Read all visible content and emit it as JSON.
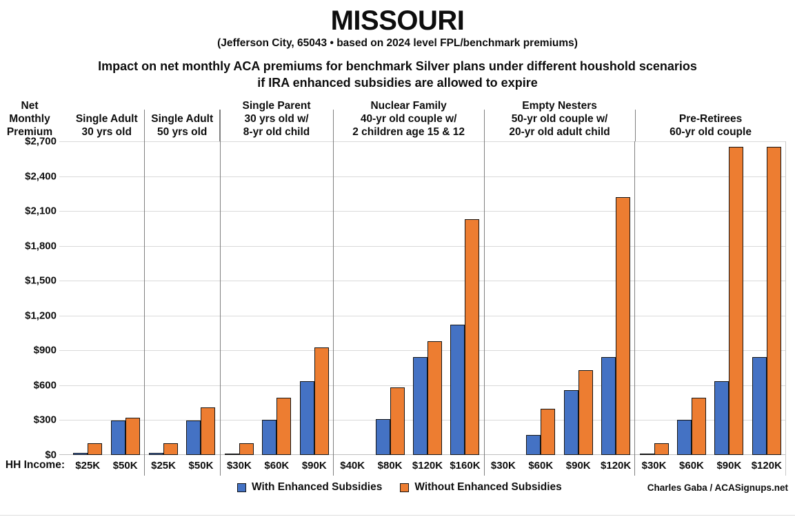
{
  "header": {
    "title": "MISSOURI",
    "subtitle": "(Jefferson City, 65043 • based on 2024 level FPL/benchmark premiums)",
    "heading_line1": "Impact on net monthly ACA premiums for benchmark Silver plans under different houshold scenarios",
    "heading_line2": "if IRA enhanced subsidies are allowed to expire"
  },
  "axis": {
    "y_title_lines": [
      "Net",
      "Monthly",
      "Premium"
    ],
    "x_title": "HH Income:",
    "y_tick_labels": [
      "$2,700",
      "$2,400",
      "$2,100",
      "$1,800",
      "$1,500",
      "$1,200",
      "$900",
      "$600",
      "$300",
      "$0"
    ]
  },
  "legend": {
    "items": [
      {
        "label": "With Enhanced Subsidies",
        "color": "#4472C4"
      },
      {
        "label": "Without Enhanced Subsidies",
        "color": "#ED7D31"
      }
    ]
  },
  "credit": "Charles Gaba / ACASignups.net",
  "chart_data": {
    "type": "bar",
    "title": "MISSOURI — Impact on net monthly ACA premiums for benchmark Silver plans under different houshold scenarios if IRA enhanced subsidies are allowed to expire",
    "xlabel": "HH Income",
    "ylabel": "Net Monthly Premium",
    "ylim": [
      0,
      2700
    ],
    "ytick_step": 300,
    "grid": true,
    "legend_position": "bottom",
    "series_names": [
      "With Enhanced Subsidies",
      "Without Enhanced Subsidies"
    ],
    "colors": {
      "with_enhanced": "#4472C4",
      "without_enhanced": "#ED7D31",
      "bar_outline": "#141414"
    },
    "groups": [
      {
        "header_lines": [
          "Single Adult",
          "30 yrs old"
        ],
        "categories": [
          "$25K",
          "$50K"
        ],
        "with_enhanced": [
          15,
          295
        ],
        "without_enhanced": [
          100,
          320
        ]
      },
      {
        "header_lines": [
          "Single Adult",
          "50 yrs old"
        ],
        "categories": [
          "$25K",
          "$50K"
        ],
        "with_enhanced": [
          15,
          295
        ],
        "without_enhanced": [
          100,
          410
        ]
      },
      {
        "header_lines": [
          "Single Parent",
          "30 yrs old w/",
          "8-yr old child"
        ],
        "categories": [
          "$30K",
          "$60K",
          "$90K"
        ],
        "with_enhanced": [
          10,
          305,
          635
        ],
        "without_enhanced": [
          100,
          490,
          925
        ]
      },
      {
        "header_lines": [
          "Nuclear Family",
          "40-yr old couple w/",
          "2 children age 15 & 12"
        ],
        "categories": [
          "$40K",
          "$80K",
          "$120K",
          "$160K"
        ],
        "with_enhanced": [
          0,
          310,
          840,
          1120
        ],
        "without_enhanced": [
          0,
          580,
          980,
          2030
        ]
      },
      {
        "header_lines": [
          "Empty Nesters",
          "50-yr old couple w/",
          "20-yr old adult child"
        ],
        "categories": [
          "$30K",
          "$60K",
          "$90K",
          "$120K"
        ],
        "with_enhanced": [
          0,
          175,
          560,
          845
        ],
        "without_enhanced": [
          0,
          395,
          730,
          2220
        ]
      },
      {
        "header_lines": [
          "Pre-Retirees",
          "60-yr old couple"
        ],
        "categories": [
          "$30K",
          "$60K",
          "$90K",
          "$120K"
        ],
        "with_enhanced": [
          5,
          305,
          635,
          845
        ],
        "without_enhanced": [
          100,
          490,
          2650,
          2650
        ]
      }
    ]
  }
}
